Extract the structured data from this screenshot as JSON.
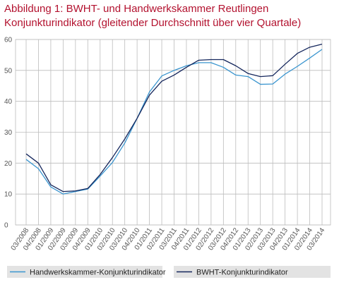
{
  "title_line1": "Abbildung 1: BWHT- und Handwerkskammer  Reutlingen",
  "title_line2": "Konjunkturindikator (gleitender Durchschnitt über vier Quartale)",
  "chart_data": {
    "type": "line",
    "categories": [
      "03/2008",
      "04/2008",
      "01/2009",
      "02/2009",
      "03/2009",
      "04/2009",
      "01/2010",
      "02/2010",
      "03/2010",
      "04/2010",
      "01/2011",
      "02/2011",
      "03/2011",
      "04/2011",
      "01/2012",
      "02/2012",
      "03/2012",
      "04/2012",
      "01/2013",
      "02/2013",
      "03/2013",
      "04/2013",
      "01/2014",
      "02/2014",
      "03/2014"
    ],
    "ylim": [
      0,
      60
    ],
    "yticks": [
      0,
      10,
      20,
      30,
      40,
      50,
      60
    ],
    "grid": true,
    "legend_position": "bottom",
    "series": [
      {
        "name": "Handwerkskammer-Konjunkturindikator",
        "color": "#3a95cf",
        "values": [
          21.2,
          18.2,
          12.3,
          10.0,
          10.8,
          11.6,
          15.8,
          20.2,
          26.5,
          34.5,
          43.0,
          48.2,
          50.0,
          51.5,
          52.5,
          52.5,
          51.0,
          48.5,
          48.0,
          45.5,
          45.6,
          48.8,
          51.3,
          54.0,
          56.8
        ]
      },
      {
        "name": "BWHT-Konjunkturindikator",
        "color": "#14265c",
        "values": [
          23.0,
          20.0,
          13.0,
          10.8,
          11.0,
          11.8,
          16.3,
          21.8,
          27.8,
          34.5,
          42.0,
          46.5,
          48.5,
          51.0,
          53.3,
          53.5,
          53.5,
          51.5,
          49.0,
          48.0,
          48.3,
          52.0,
          55.5,
          57.5,
          58.5
        ]
      }
    ]
  }
}
